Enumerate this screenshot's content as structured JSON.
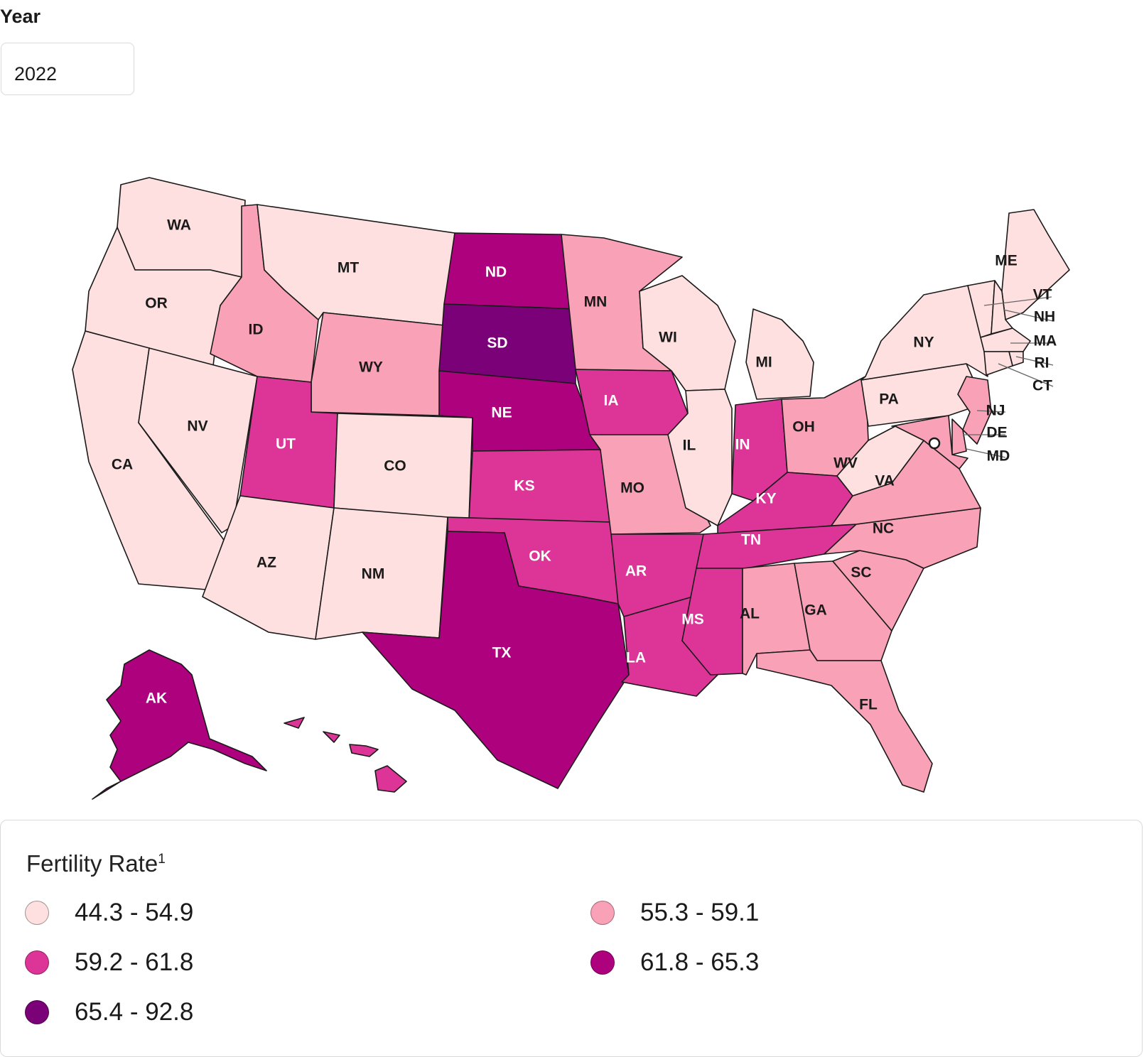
{
  "filter": {
    "label": "Year",
    "selected": "2022"
  },
  "map": {
    "title": "Fertility Rate",
    "footnote_marker": "1",
    "colors": {
      "c1": "#fde0df",
      "c2": "#f9a1b7",
      "c3": "#dd3497",
      "c4": "#ae017e",
      "c5": "#7a0177"
    },
    "legend": [
      {
        "label": "44.3 - 54.9",
        "color": "#fde0df"
      },
      {
        "label": "55.3 - 59.1",
        "color": "#f9a1b7"
      },
      {
        "label": "59.2 - 61.8",
        "color": "#dd3497"
      },
      {
        "label": "61.8 - 65.3",
        "color": "#ae017e"
      },
      {
        "label": "65.4 - 92.8",
        "color": "#7a0177"
      }
    ],
    "states": [
      {
        "code": "WA",
        "cls": "44.3 - 54.9"
      },
      {
        "code": "OR",
        "cls": "44.3 - 54.9"
      },
      {
        "code": "CA",
        "cls": "44.3 - 54.9"
      },
      {
        "code": "NV",
        "cls": "44.3 - 54.9"
      },
      {
        "code": "ID",
        "cls": "55.3 - 59.1"
      },
      {
        "code": "MT",
        "cls": "44.3 - 54.9"
      },
      {
        "code": "WY",
        "cls": "55.3 - 59.1"
      },
      {
        "code": "UT",
        "cls": "59.2 - 61.8"
      },
      {
        "code": "AZ",
        "cls": "44.3 - 54.9"
      },
      {
        "code": "CO",
        "cls": "44.3 - 54.9"
      },
      {
        "code": "NM",
        "cls": "44.3 - 54.9"
      },
      {
        "code": "ND",
        "cls": "61.8 - 65.3"
      },
      {
        "code": "SD",
        "cls": "65.4 - 92.8"
      },
      {
        "code": "NE",
        "cls": "61.8 - 65.3"
      },
      {
        "code": "KS",
        "cls": "59.2 - 61.8"
      },
      {
        "code": "OK",
        "cls": "59.2 - 61.8"
      },
      {
        "code": "TX",
        "cls": "61.8 - 65.3"
      },
      {
        "code": "MN",
        "cls": "55.3 - 59.1"
      },
      {
        "code": "IA",
        "cls": "59.2 - 61.8"
      },
      {
        "code": "MO",
        "cls": "55.3 - 59.1"
      },
      {
        "code": "AR",
        "cls": "59.2 - 61.8"
      },
      {
        "code": "LA",
        "cls": "59.2 - 61.8"
      },
      {
        "code": "WI",
        "cls": "44.3 - 54.9"
      },
      {
        "code": "IL",
        "cls": "44.3 - 54.9"
      },
      {
        "code": "MI",
        "cls": "44.3 - 54.9"
      },
      {
        "code": "IN",
        "cls": "59.2 - 61.8"
      },
      {
        "code": "OH",
        "cls": "55.3 - 59.1"
      },
      {
        "code": "KY",
        "cls": "59.2 - 61.8"
      },
      {
        "code": "TN",
        "cls": "59.2 - 61.8"
      },
      {
        "code": "MS",
        "cls": "59.2 - 61.8"
      },
      {
        "code": "AL",
        "cls": "55.3 - 59.1"
      },
      {
        "code": "GA",
        "cls": "55.3 - 59.1"
      },
      {
        "code": "FL",
        "cls": "55.3 - 59.1"
      },
      {
        "code": "SC",
        "cls": "55.3 - 59.1"
      },
      {
        "code": "NC",
        "cls": "55.3 - 59.1"
      },
      {
        "code": "VA",
        "cls": "55.3 - 59.1"
      },
      {
        "code": "WV",
        "cls": "44.3 - 54.9"
      },
      {
        "code": "PA",
        "cls": "44.3 - 54.9"
      },
      {
        "code": "NY",
        "cls": "44.3 - 54.9"
      },
      {
        "code": "ME",
        "cls": "44.3 - 54.9"
      },
      {
        "code": "VT",
        "cls": "44.3 - 54.9"
      },
      {
        "code": "NH",
        "cls": "44.3 - 54.9"
      },
      {
        "code": "MA",
        "cls": "44.3 - 54.9"
      },
      {
        "code": "RI",
        "cls": "44.3 - 54.9"
      },
      {
        "code": "CT",
        "cls": "44.3 - 54.9"
      },
      {
        "code": "NJ",
        "cls": "55.3 - 59.1"
      },
      {
        "code": "DE",
        "cls": "55.3 - 59.1"
      },
      {
        "code": "MD",
        "cls": "55.3 - 59.1"
      },
      {
        "code": "AK",
        "cls": "61.8 - 65.3"
      },
      {
        "code": "HI",
        "cls": "59.2 - 61.8"
      }
    ]
  }
}
